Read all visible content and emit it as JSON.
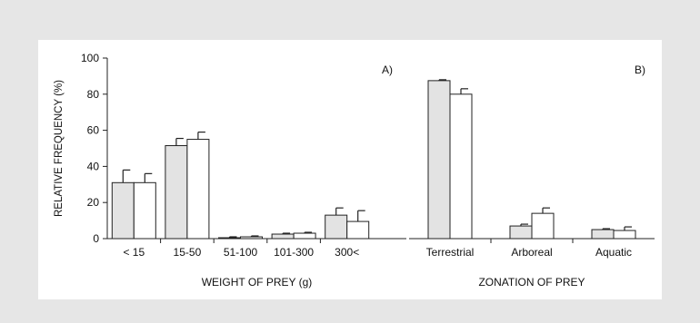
{
  "chart_data": [
    {
      "type": "bar",
      "panel_label": "A)",
      "xlabel": "WEIGHT OF PREY (g)",
      "ylabel": "RELATIVE FREQUENCY (%)",
      "ylim": [
        0,
        100
      ],
      "yticks": [
        0,
        20,
        40,
        60,
        80,
        100
      ],
      "categories": [
        "< 15",
        "15-50",
        "51-100",
        "101-300",
        "300<"
      ],
      "series": [
        {
          "fill": "#e3e3e3",
          "values": [
            31,
            51.5,
            0.5,
            2.5,
            13
          ],
          "errors": [
            7,
            4,
            0.5,
            0.5,
            4
          ]
        },
        {
          "fill": "#ffffff",
          "values": [
            31,
            55,
            1,
            3,
            9.5
          ],
          "errors": [
            5,
            4,
            0.5,
            0.5,
            6
          ]
        }
      ],
      "grid": false,
      "legend": "none"
    },
    {
      "type": "bar",
      "panel_label": "B)",
      "xlabel": "ZONATION OF PREY",
      "ylim": [
        0,
        100
      ],
      "categories": [
        "Terrestrial",
        "Arboreal",
        "Aquatic"
      ],
      "series": [
        {
          "fill": "#e3e3e3",
          "values": [
            87.5,
            7,
            5
          ],
          "errors": [
            0.5,
            1,
            0.5
          ]
        },
        {
          "fill": "#ffffff",
          "values": [
            80,
            14,
            4.5
          ],
          "errors": [
            3,
            3,
            2
          ]
        }
      ],
      "grid": false,
      "legend": "none"
    }
  ]
}
